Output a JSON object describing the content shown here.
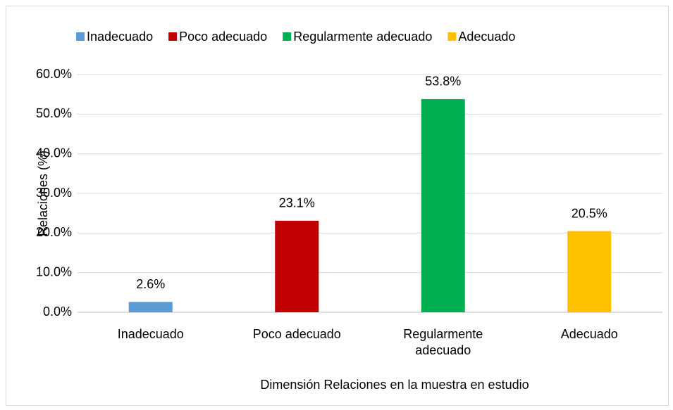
{
  "chart_data": {
    "type": "bar",
    "categories": [
      "Inadecuado",
      "Poco adecuado",
      "Regularmente adecuado",
      "Adecuado"
    ],
    "values": [
      2.6,
      23.1,
      53.8,
      20.5
    ],
    "value_labels": [
      "2.6%",
      "23.1%",
      "53.8%",
      "20.5%"
    ],
    "colors": [
      "#5b9bd5",
      "#c00000",
      "#00b050",
      "#ffc000"
    ],
    "ylabel": "Relaciones (%)",
    "xlabel": "Dimensión Relaciones  en la muestra en estudio",
    "ylim": [
      0,
      60
    ],
    "yticks": [
      {
        "value": 0,
        "label": "0.0%"
      },
      {
        "value": 10,
        "label": "10.0%"
      },
      {
        "value": 20,
        "label": "20.0%"
      },
      {
        "value": 30,
        "label": "30.0%"
      },
      {
        "value": 40,
        "label": "40.0%"
      },
      {
        "value": 50,
        "label": "50.0%"
      },
      {
        "value": 60,
        "label": "60.0%"
      }
    ],
    "grid": true,
    "legend": "top"
  }
}
